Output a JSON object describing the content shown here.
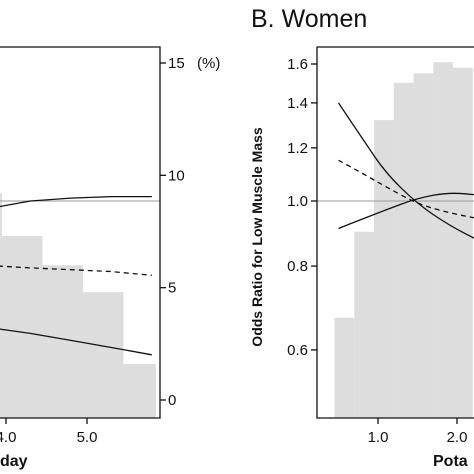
{
  "chart_data": [
    {
      "type": "line",
      "panel": "left",
      "title": "",
      "xlabel_visible_fragment": "day",
      "x_ticks": [
        {
          "value": 4.0,
          "label": "4.0"
        },
        {
          "value": 5.0,
          "label": "5.0"
        }
      ],
      "xlim": [
        3.9,
        5.95
      ],
      "ylim": [
        0.5,
        1.65
      ],
      "right_axis": {
        "unit_label": "(%)",
        "ticks": [
          0,
          5,
          10,
          15
        ],
        "range": [
          0,
          15
        ]
      },
      "histogram": {
        "unit": "%",
        "bins": [
          {
            "x0": 3.9,
            "x1": 3.95,
            "value": 9.2
          },
          {
            "x0": 3.95,
            "x1": 4.45,
            "value": 7.3
          },
          {
            "x0": 4.45,
            "x1": 4.95,
            "value": 6.0
          },
          {
            "x0": 4.95,
            "x1": 5.45,
            "value": 4.8
          },
          {
            "x0": 5.45,
            "x1": 5.85,
            "value": 1.6
          }
        ]
      },
      "reference_line": 1.0,
      "series": [
        {
          "style": "solid",
          "x": [
            3.9,
            4.3,
            4.8,
            5.3,
            5.8
          ],
          "values": [
            0.98,
            1.0,
            1.01,
            1.015,
            1.015
          ]
        },
        {
          "style": "dashed",
          "x": [
            3.9,
            4.3,
            4.8,
            5.3,
            5.8
          ],
          "values": [
            0.8,
            0.795,
            0.79,
            0.785,
            0.775
          ]
        },
        {
          "style": "solid",
          "x": [
            3.9,
            4.3,
            4.8,
            5.3,
            5.8
          ],
          "values": [
            0.645,
            0.635,
            0.62,
            0.605,
            0.59
          ]
        }
      ]
    },
    {
      "type": "line",
      "panel": "right",
      "title": "B. Women",
      "ylabel": "Odds Ratio for Low Muscle Mass",
      "xlabel_visible_fragment": "Pota",
      "x_ticks": [
        {
          "value": 1.0,
          "label": "1.0"
        },
        {
          "value": 2.0,
          "label": "2.0"
        }
      ],
      "xlim": [
        0.3,
        2.3
      ],
      "ylim": [
        0.5,
        1.65
      ],
      "y_ticks": [
        {
          "value": 0.6,
          "label": "0.6"
        },
        {
          "value": 0.8,
          "label": "0.8"
        },
        {
          "value": 1.0,
          "label": "1.0"
        },
        {
          "value": 1.2,
          "label": "1.2"
        },
        {
          "value": 1.4,
          "label": "1.4"
        },
        {
          "value": 1.6,
          "label": "1.6"
        }
      ],
      "y_scale": "log",
      "histogram": {
        "bins": [
          {
            "x0": 0.45,
            "x1": 0.7,
            "value": 0.67
          },
          {
            "x0": 0.7,
            "x1": 0.95,
            "value": 0.9
          },
          {
            "x0": 0.95,
            "x1": 1.2,
            "value": 1.32
          },
          {
            "x0": 1.2,
            "x1": 1.45,
            "value": 1.5
          },
          {
            "x0": 1.45,
            "x1": 1.7,
            "value": 1.55
          },
          {
            "x0": 1.7,
            "x1": 1.95,
            "value": 1.61
          },
          {
            "x0": 1.95,
            "x1": 2.2,
            "value": 1.58
          }
        ]
      },
      "reference_line": 1.0,
      "series": [
        {
          "style": "solid",
          "x": [
            0.5,
            0.8,
            1.1,
            1.5,
            1.9,
            2.3
          ],
          "values": [
            1.4,
            1.24,
            1.1,
            0.99,
            0.92,
            0.87
          ]
        },
        {
          "style": "dashed",
          "x": [
            0.5,
            0.8,
            1.1,
            1.5,
            1.9,
            2.3
          ],
          "values": [
            1.15,
            1.1,
            1.05,
            0.99,
            0.96,
            0.94
          ]
        },
        {
          "style": "solid",
          "x": [
            0.5,
            0.8,
            1.1,
            1.5,
            1.9,
            2.3
          ],
          "values": [
            0.91,
            0.94,
            0.97,
            1.01,
            1.03,
            1.02
          ]
        }
      ]
    }
  ]
}
